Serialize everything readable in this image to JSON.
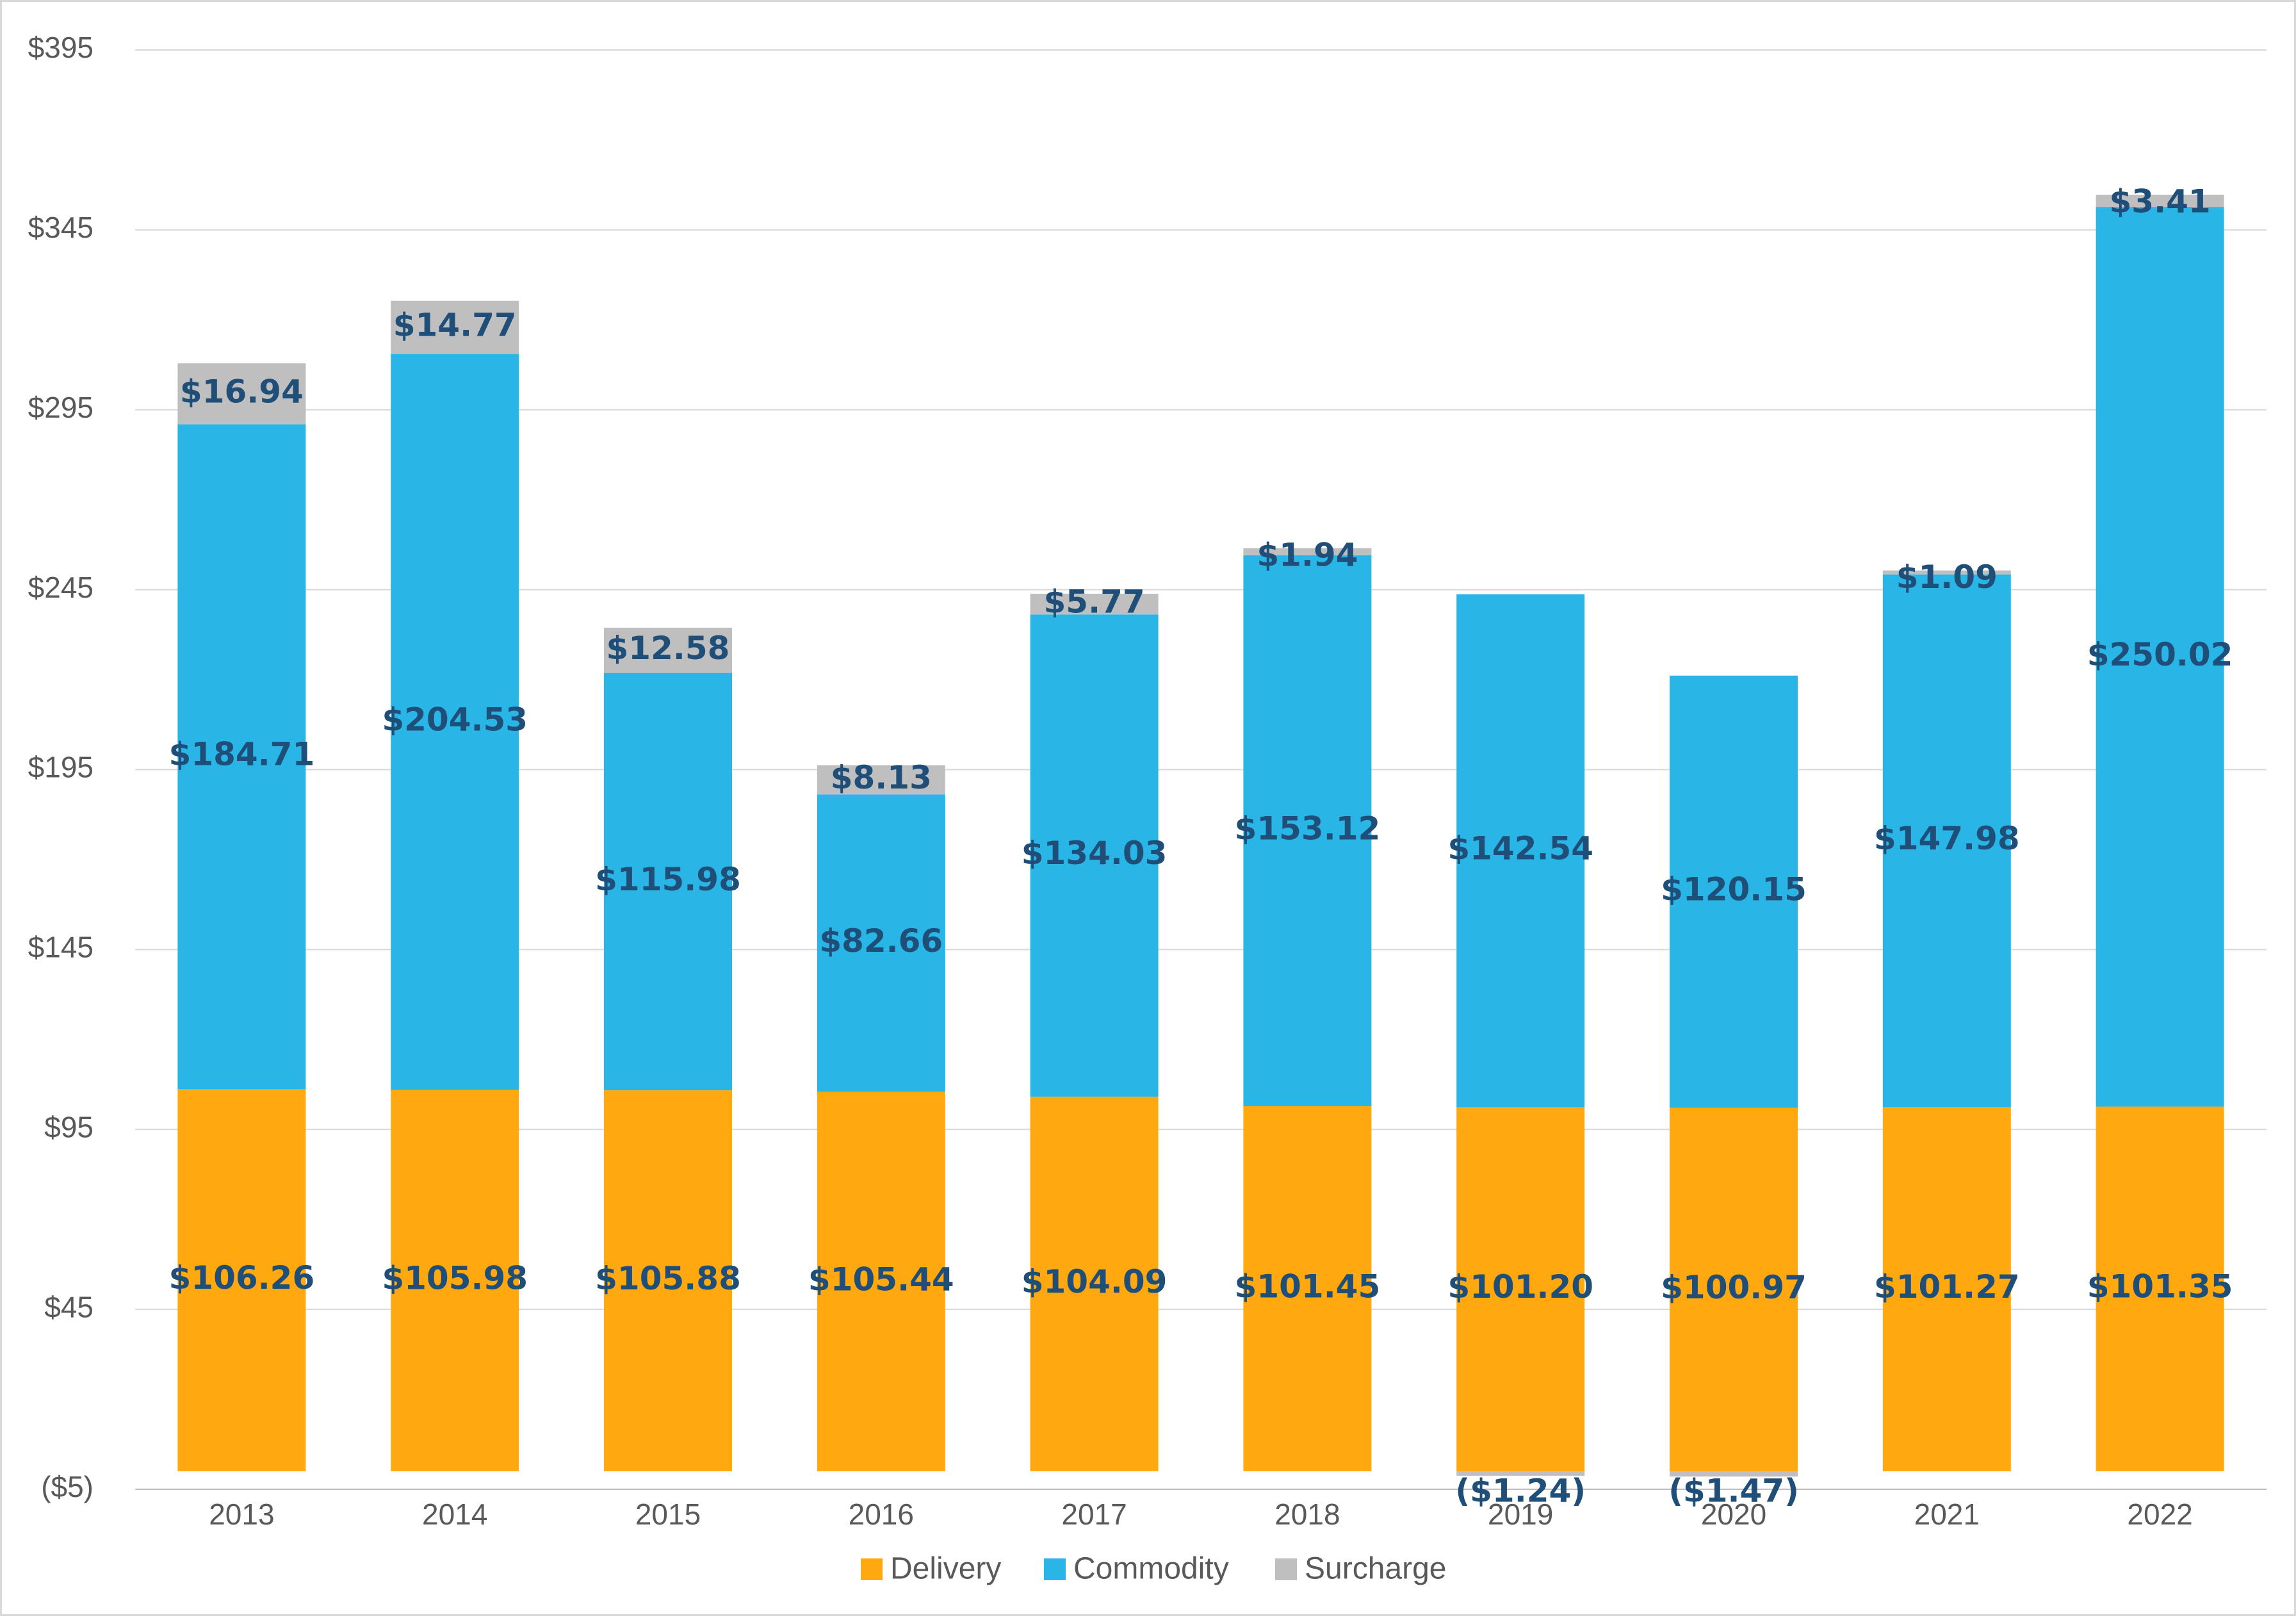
{
  "chart_data": {
    "type": "bar",
    "stacked": true,
    "title": "",
    "xlabel": "",
    "ylabel": "",
    "ylim": [
      -5,
      395
    ],
    "yticks": [
      -5,
      45,
      95,
      145,
      195,
      245,
      295,
      345,
      395
    ],
    "ytick_labels": [
      "($5)",
      "$45",
      "$95",
      "$145",
      "$195",
      "$245",
      "$295",
      "$345",
      "$395"
    ],
    "grid": true,
    "legend_position": "bottom",
    "categories": [
      "2013",
      "2014",
      "2015",
      "2016",
      "2017",
      "2018",
      "2019",
      "2020",
      "2021",
      "2022"
    ],
    "series": [
      {
        "name": "Delivery",
        "color": "#ffa80f",
        "values": [
          106.26,
          105.98,
          105.88,
          105.44,
          104.09,
          101.45,
          101.2,
          100.97,
          101.27,
          101.35
        ],
        "labels": [
          "$106.26",
          "$105.98",
          "$105.88",
          "$105.44",
          "$104.09",
          "$101.45",
          "$101.20",
          "$100.97",
          "$101.27",
          "$101.35"
        ]
      },
      {
        "name": "Commodity",
        "color": "#29b5e5",
        "values": [
          184.71,
          204.53,
          115.98,
          82.66,
          134.03,
          153.12,
          142.54,
          120.15,
          147.98,
          250.02
        ],
        "labels": [
          "$184.71",
          "$204.53",
          "$115.98",
          "$82.66",
          "$134.03",
          "$153.12",
          "$142.54",
          "$120.15",
          "$147.98",
          "$250.02"
        ]
      },
      {
        "name": "Surcharge",
        "color": "#bfbfbf",
        "values": [
          16.94,
          14.77,
          12.58,
          8.13,
          5.77,
          1.94,
          -1.24,
          -1.47,
          1.09,
          3.41
        ],
        "labels": [
          "$16.94",
          "$14.77",
          "$12.58",
          "$8.13",
          "$5.77",
          "$1.94",
          "($1.24)",
          "($1.47)",
          "$1.09",
          "$3.41"
        ]
      }
    ]
  }
}
